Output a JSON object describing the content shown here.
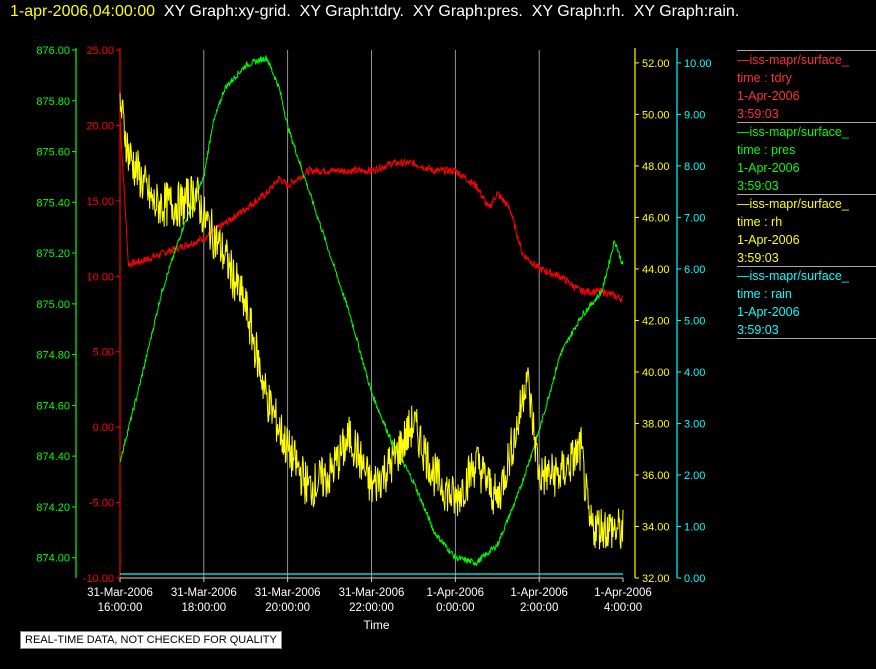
{
  "header": {
    "timestamp": "1-apr-2006,04:00:00",
    "titles": "  XY Graph:xy-grid.  XY Graph:tdry.  XY Graph:pres.  XY Graph:rh.  XY Graph:rain."
  },
  "note": "REAL-TIME DATA, NOT CHECKED FOR QUALITY",
  "colors": {
    "tdry": "#ff0000",
    "pres": "#00ff00",
    "rh": "#ffff00",
    "rain": "#00ffff",
    "grid": "#b8b8b8"
  },
  "legend": [
    {
      "name": "iss-mapr/surface_",
      "label": "time : tdry",
      "date": "1-Apr-2006",
      "time": "3:59:03",
      "color": "#ff3030"
    },
    {
      "name": "iss-mapr/surface_",
      "label": "time : pres",
      "date": "1-Apr-2006",
      "time": "3:59:03",
      "color": "#00ff00"
    },
    {
      "name": "iss-mapr/surface_",
      "label": "time : rh",
      "date": "1-Apr-2006",
      "time": "3:59:03",
      "color": "#ffff00"
    },
    {
      "name": "iss-mapr/surface_",
      "label": "time : rain",
      "date": "1-Apr-2006",
      "time": "3:59:03",
      "color": "#00ffff"
    }
  ],
  "chart_data": {
    "type": "line",
    "xlabel": "Time",
    "x_ticks": [
      [
        "31-Mar-2006",
        "16:00:00"
      ],
      [
        "31-Mar-2006",
        "18:00:00"
      ],
      [
        "31-Mar-2006",
        "20:00:00"
      ],
      [
        "31-Mar-2006",
        "22:00:00"
      ],
      [
        "1-Apr-2006",
        "0:00:00"
      ],
      [
        "1-Apr-2006",
        "2:00:00"
      ],
      [
        "1-Apr-2006",
        "4:00:00"
      ]
    ],
    "xlim_hours": [
      0,
      12
    ],
    "axes": {
      "tdry": {
        "ylim": [
          -10,
          25
        ],
        "ticks": [
          "25.00",
          "20.00",
          "15.00",
          "10.00",
          "5.00",
          "0.00",
          "-5.00",
          "-10.00"
        ]
      },
      "pres": {
        "ylim": [
          873.92,
          876.0
        ],
        "ticks": [
          "876.00",
          "875.80",
          "875.60",
          "875.40",
          "875.20",
          "875.00",
          "874.80",
          "874.60",
          "874.40",
          "874.20",
          "874.00"
        ]
      },
      "rh": {
        "ylim": [
          32,
          52.5
        ],
        "ticks": [
          "52.00",
          "50.00",
          "48.00",
          "46.00",
          "44.00",
          "42.00",
          "40.00",
          "38.00",
          "36.00",
          "34.00",
          "32.00"
        ]
      },
      "rain": {
        "ylim": [
          0,
          10.25
        ],
        "ticks": [
          "10.00",
          "9.00",
          "8.00",
          "7.00",
          "6.00",
          "5.00",
          "4.00",
          "3.00",
          "2.00",
          "1.00",
          "0.00"
        ]
      }
    },
    "series": [
      {
        "name": "tdry",
        "x": [
          0,
          0.2,
          0.5,
          1,
          1.5,
          2,
          2.5,
          3,
          3.5,
          3.8,
          4,
          4.5,
          5,
          5.5,
          6,
          6.5,
          7,
          7.5,
          8,
          8.5,
          8.8,
          9,
          9.3,
          9.6,
          10,
          10.5,
          11,
          11.5,
          12
        ],
        "y": [
          20.5,
          10.8,
          11,
          11.5,
          12,
          12.5,
          13.5,
          14.5,
          15.5,
          16.5,
          16,
          17,
          17,
          17,
          17,
          17.5,
          17.5,
          17,
          17,
          16,
          14.5,
          15.5,
          14.5,
          11.5,
          10.5,
          10,
          9,
          9,
          8.5
        ]
      },
      {
        "name": "pres",
        "x": [
          0,
          0.5,
          1,
          1.5,
          2,
          2.2,
          2.5,
          3,
          3.5,
          3.8,
          4,
          4.5,
          5,
          5.5,
          6,
          6.5,
          7,
          7.5,
          8,
          8.5,
          9,
          9.5,
          10,
          10.5,
          11,
          11.5,
          11.8,
          12
        ],
        "y": [
          874.38,
          874.7,
          875.05,
          875.3,
          875.5,
          875.7,
          875.85,
          875.94,
          875.97,
          875.85,
          875.7,
          875.45,
          875.2,
          874.95,
          874.65,
          874.45,
          874.3,
          874.1,
          874.0,
          873.98,
          874.05,
          874.25,
          874.5,
          874.8,
          874.95,
          875.05,
          875.25,
          875.15
        ]
      },
      {
        "name": "rh",
        "x": [
          0,
          0.2,
          0.5,
          0.8,
          1,
          1.5,
          1.8,
          2,
          2.5,
          3,
          3.5,
          4,
          4.5,
          5,
          5.5,
          6,
          6.5,
          7,
          7.5,
          8,
          8.5,
          9,
          9.5,
          9.7,
          10,
          10.5,
          11,
          11.2,
          11.5,
          12
        ],
        "y": [
          50.5,
          48.5,
          47.5,
          46.5,
          46.5,
          46.5,
          47,
          46,
          44.5,
          42.5,
          39,
          37,
          35.5,
          36,
          37.5,
          35.5,
          36.5,
          38,
          36,
          35,
          36.5,
          35,
          38,
          40,
          36,
          36,
          37,
          34,
          34,
          33.8
        ]
      },
      {
        "name": "rain",
        "x": [
          0,
          12
        ],
        "y": [
          0,
          0
        ]
      }
    ]
  }
}
